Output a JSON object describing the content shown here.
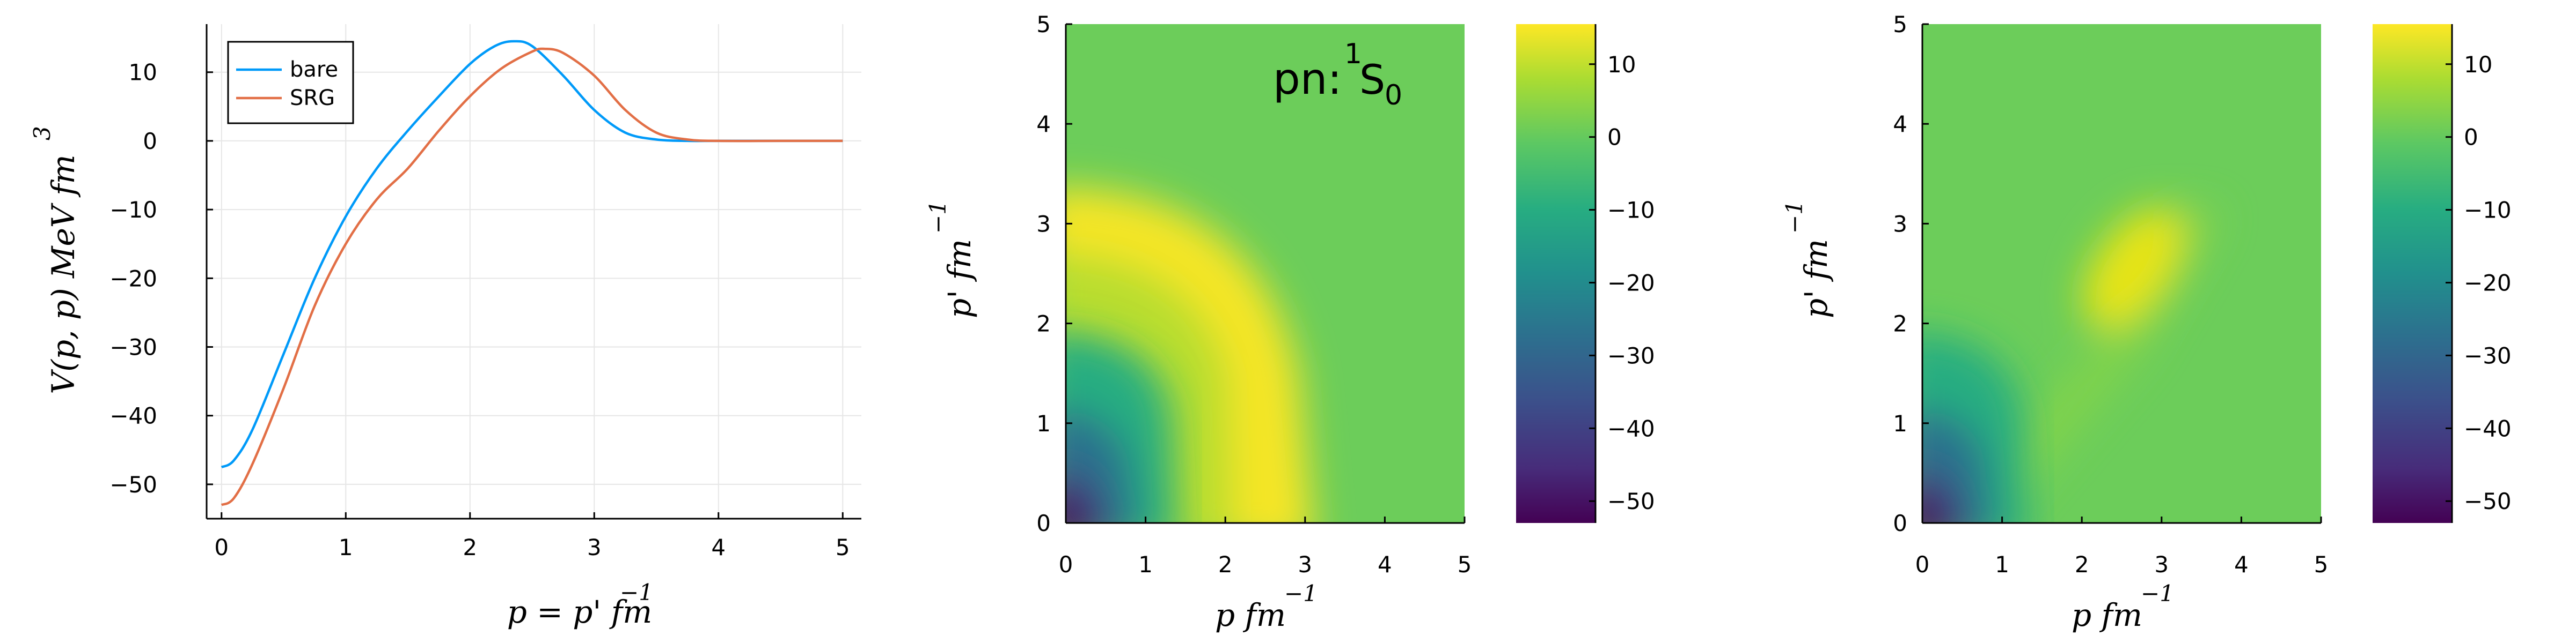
{
  "chart_data": [
    {
      "type": "line",
      "xlabel": "p = p' fm",
      "xlabel_sup": "−1",
      "ylabel": "V(p, p) MeV fm",
      "ylabel_sup": "3",
      "xlim": [
        -0.12,
        5.15
      ],
      "ylim": [
        -55,
        17
      ],
      "xticks": [
        0,
        1,
        2,
        3,
        4,
        5
      ],
      "yticks": [
        -50,
        -40,
        -30,
        -20,
        -10,
        0,
        10
      ],
      "grid": true,
      "legend_position": "top-left",
      "series": [
        {
          "name": "bare",
          "color": "#009af9",
          "x": [
            0,
            0.1,
            0.25,
            0.5,
            0.75,
            1.0,
            1.25,
            1.5,
            1.75,
            2.0,
            2.2,
            2.35,
            2.5,
            2.75,
            3.0,
            3.25,
            3.5,
            3.75,
            4.0,
            4.5,
            5.0
          ],
          "y": [
            -47.5,
            -46.5,
            -42,
            -31,
            -20,
            -11,
            -4,
            1.5,
            6.5,
            11.2,
            13.8,
            14.5,
            13.8,
            9.5,
            4.5,
            1.2,
            0.2,
            0,
            0,
            0,
            0
          ]
        },
        {
          "name": "SRG",
          "color": "#e26f46",
          "x": [
            0,
            0.1,
            0.25,
            0.5,
            0.75,
            1.0,
            1.25,
            1.5,
            1.75,
            2.0,
            2.25,
            2.5,
            2.6,
            2.75,
            3.0,
            3.25,
            3.5,
            3.75,
            4.0,
            4.5,
            5.0
          ],
          "y": [
            -53,
            -52,
            -47,
            -36,
            -24,
            -15,
            -8.5,
            -4,
            1.5,
            6.5,
            10.5,
            13,
            13.4,
            12.8,
            9.5,
            4.5,
            1.2,
            0.2,
            0,
            0,
            0
          ]
        }
      ]
    },
    {
      "type": "heatmap",
      "annotation": "pn: ",
      "annotation_math": "S",
      "annotation_sup": "1",
      "annotation_sub": "0",
      "xlabel": "p fm",
      "xlabel_sup": "−1",
      "ylabel": "p' fm",
      "ylabel_sup": "−1",
      "xlim": [
        0,
        5
      ],
      "ylim": [
        0,
        5
      ],
      "xticks": [
        0,
        1,
        2,
        3,
        4,
        5
      ],
      "yticks": [
        0,
        1,
        2,
        3,
        4,
        5
      ],
      "colormap": "viridis",
      "colorbar_range": [
        -53,
        15.5
      ],
      "colorbar_ticks": [
        -50,
        -40,
        -30,
        -20,
        -10,
        0,
        10
      ],
      "features": [
        {
          "kind": "deep-minimum",
          "p": 0,
          "p_prime": 0,
          "value": -53
        },
        {
          "kind": "ridge",
          "radius": 2.55,
          "value": 14.5
        }
      ]
    },
    {
      "type": "heatmap",
      "xlabel": "p fm",
      "xlabel_sup": "−1",
      "ylabel": "p' fm",
      "ylabel_sup": "−1",
      "xlim": [
        0,
        5
      ],
      "ylim": [
        0,
        5
      ],
      "xticks": [
        0,
        1,
        2,
        3,
        4,
        5
      ],
      "yticks": [
        0,
        1,
        2,
        3,
        4,
        5
      ],
      "colormap": "viridis",
      "colorbar_range": [
        -53,
        15.5
      ],
      "colorbar_ticks": [
        -50,
        -40,
        -30,
        -20,
        -10,
        0,
        10
      ],
      "features": [
        {
          "kind": "deep-minimum",
          "p": 0,
          "p_prime": 0,
          "value": -53
        },
        {
          "kind": "diagonal-peak",
          "p": 2.6,
          "p_prime": 2.6,
          "value": 13.4
        }
      ]
    }
  ]
}
